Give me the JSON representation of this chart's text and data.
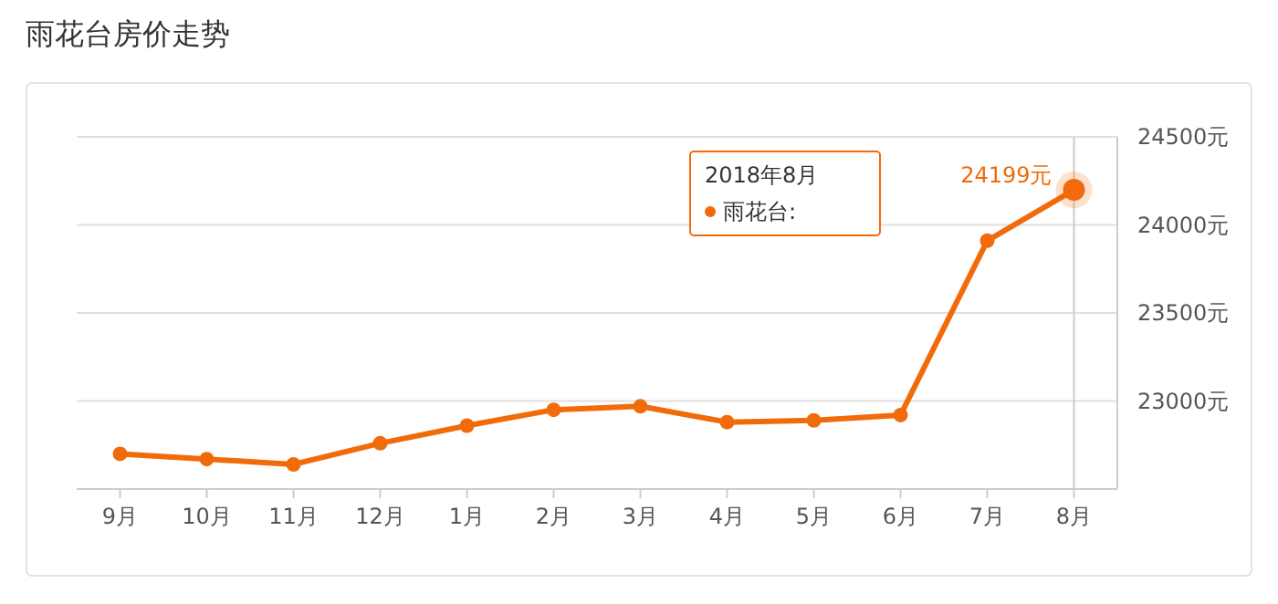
{
  "chart_data": {
    "type": "line",
    "title": "雨花台房价走势",
    "categories": [
      "9月",
      "10月",
      "11月",
      "12月",
      "1月",
      "2月",
      "3月",
      "4月",
      "5月",
      "6月",
      "7月",
      "8月"
    ],
    "series": [
      {
        "name": "雨花台:",
        "color": "#f26b0a",
        "values": [
          22700,
          22670,
          22640,
          22760,
          22860,
          22950,
          22970,
          22880,
          22890,
          22920,
          23910,
          24199
        ],
        "value_labels": [
          null,
          null,
          null,
          null,
          null,
          null,
          null,
          null,
          null,
          null,
          null,
          "24199元"
        ]
      }
    ],
    "ylim": [
      22500,
      24500
    ],
    "yticks": [
      {
        "value": 23000,
        "label": "23000元"
      },
      {
        "value": 23500,
        "label": "23500元"
      },
      {
        "value": 24000,
        "label": "24000元"
      },
      {
        "value": 24500,
        "label": "24500元"
      }
    ],
    "legend_title": "2018年8月",
    "ref_lines": [
      {
        "axis": "x",
        "value": "8月",
        "color": "#cccccc"
      }
    ],
    "grid": "y",
    "marker": "circle",
    "line_style": "solid",
    "legend": "top right"
  }
}
